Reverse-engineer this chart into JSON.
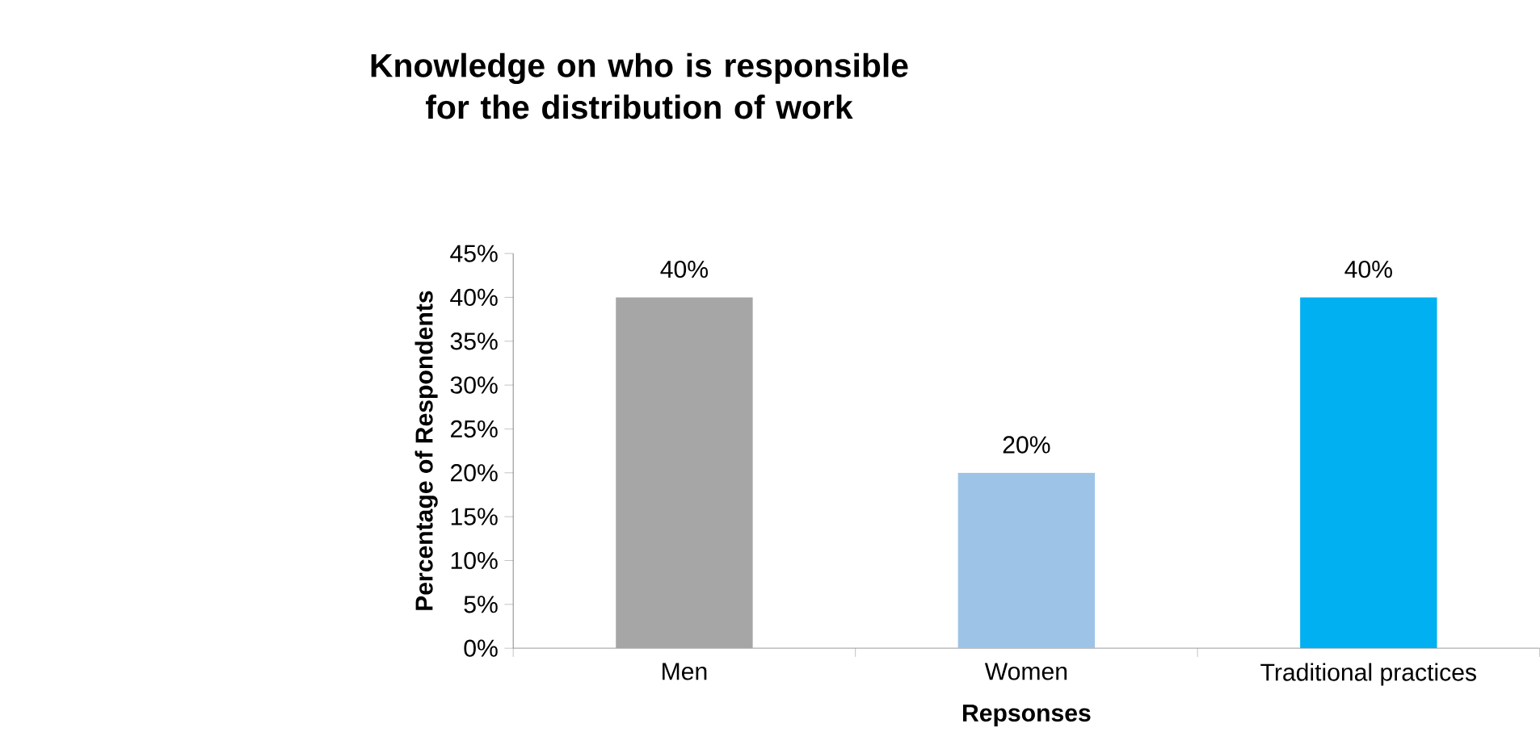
{
  "chart_data": {
    "type": "bar",
    "title": "Knowledge on who is responsible for the distribution of work",
    "xlabel": "Repsonses",
    "ylabel": "Percentage of Respondents",
    "categories": [
      "Men",
      "Women",
      "Traditional practices"
    ],
    "values": [
      40,
      20,
      40
    ],
    "colors": [
      "#a6a6a6",
      "#9dc3e6",
      "#00b0f0"
    ],
    "value_labels": [
      "40%",
      "20%",
      "40%"
    ],
    "ylim": [
      0,
      45
    ],
    "yticks": [
      {
        "value": 0,
        "label": "0%"
      },
      {
        "value": 5,
        "label": "5%"
      },
      {
        "value": 10,
        "label": "10%"
      },
      {
        "value": 15,
        "label": "15%"
      },
      {
        "value": 20,
        "label": "20%"
      },
      {
        "value": 25,
        "label": "25%"
      },
      {
        "value": 30,
        "label": "30%"
      },
      {
        "value": 35,
        "label": "35%"
      },
      {
        "value": 40,
        "label": "40%"
      },
      {
        "value": 45,
        "label": "45%"
      }
    ],
    "grid": false
  }
}
